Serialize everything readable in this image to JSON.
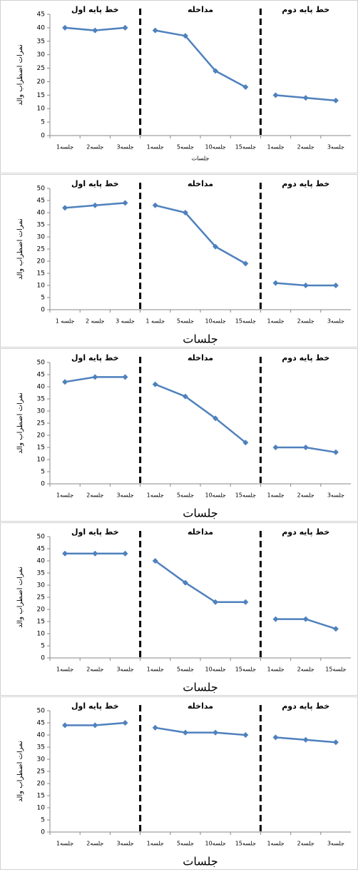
{
  "chart_data": [
    {
      "type": "line",
      "ylim": [
        0,
        45
      ],
      "yticks": [
        0,
        5,
        10,
        15,
        20,
        25,
        30,
        35,
        40,
        45
      ],
      "y_label": "نمرات اضطراب والد",
      "x_label": "جلسات",
      "categories": [
        "جلسه1",
        "جلسه2",
        "جلسه3",
        "جلسه1",
        "جلسه5",
        "جلسه10",
        "جلسه15",
        "جلسه1",
        "جلسه2",
        "جلسه3"
      ],
      "annotations": [
        "خط پایه اول",
        "مداخله",
        "خط پایه دوم"
      ],
      "series": [
        {
          "color": "#4f81bd",
          "values": [
            40,
            39,
            40,
            null,
            null,
            null,
            null,
            null,
            null,
            null
          ]
        },
        {
          "color": "#4f81bd",
          "values": [
            null,
            null,
            null,
            39,
            37,
            24,
            18,
            null,
            null,
            null
          ]
        },
        {
          "color": "#4f81bd",
          "values": [
            null,
            null,
            null,
            null,
            null,
            null,
            null,
            15,
            14,
            13
          ]
        }
      ]
    },
    {
      "type": "line",
      "ylim": [
        0,
        50
      ],
      "yticks": [
        0,
        5,
        10,
        15,
        20,
        25,
        30,
        35,
        40,
        45,
        50
      ],
      "y_label": "نمرات اضطراب والد",
      "x_label": "جلسات",
      "categories": [
        "جلسه 1",
        "جلسه 2",
        "جلسه 3",
        "جلسه 1",
        "جلسه5",
        "جلسه10",
        "جلسه15",
        "جلسه1",
        "جلسه2",
        "جلسه3"
      ],
      "annotations": [
        "خط پایه اول",
        "مداخله",
        "خط پایه دوم"
      ],
      "series": [
        {
          "color": "#4f81bd",
          "values": [
            42,
            43,
            44,
            null,
            null,
            null,
            null,
            null,
            null,
            null
          ]
        },
        {
          "color": "#4f81bd",
          "values": [
            null,
            null,
            null,
            43,
            40,
            26,
            19,
            null,
            null,
            null
          ]
        },
        {
          "color": "#4f81bd",
          "values": [
            null,
            null,
            null,
            null,
            null,
            null,
            null,
            11,
            10,
            10
          ]
        }
      ]
    },
    {
      "type": "line",
      "ylim": [
        0,
        50
      ],
      "yticks": [
        0,
        5,
        10,
        15,
        20,
        25,
        30,
        35,
        40,
        45,
        50
      ],
      "y_label": "نمرات اضطراب والد",
      "x_label": "جلسات",
      "categories": [
        "جلسه1",
        "جلسه2",
        "جلسه3",
        "جلسه1",
        "جلسه5",
        "جلسه10",
        "جلسه15",
        "جلسه1",
        "جلسه2",
        "جلسه3"
      ],
      "annotations": [
        "خط پایه اول",
        "مداخله",
        "خط پایه دوم"
      ],
      "series": [
        {
          "color": "#4f81bd",
          "values": [
            42,
            44,
            44,
            null,
            null,
            null,
            null,
            null,
            null,
            null
          ]
        },
        {
          "color": "#4f81bd",
          "values": [
            null,
            null,
            null,
            41,
            36,
            27,
            17,
            null,
            null,
            null
          ]
        },
        {
          "color": "#4f81bd",
          "values": [
            null,
            null,
            null,
            null,
            null,
            null,
            null,
            15,
            15,
            13
          ]
        }
      ]
    },
    {
      "type": "line",
      "ylim": [
        0,
        50
      ],
      "yticks": [
        0,
        5,
        10,
        15,
        20,
        25,
        30,
        35,
        40,
        45,
        50
      ],
      "y_label": "نمرات اضطراب والد",
      "x_label": "جلسات",
      "categories": [
        "جلسه1",
        "جلسه2",
        "جلسه3",
        "جلسه1",
        "جلسه5",
        "جلسه10",
        "جلسه15",
        "جلسه1",
        "جلسه2",
        "جلسه15"
      ],
      "annotations": [
        "خط پایه اول",
        "مداخله",
        "خط پایه دوم"
      ],
      "series": [
        {
          "color": "#4f81bd",
          "values": [
            43,
            43,
            43,
            null,
            null,
            null,
            null,
            null,
            null,
            null
          ]
        },
        {
          "color": "#4f81bd",
          "values": [
            null,
            null,
            null,
            40,
            31,
            23,
            23,
            null,
            null,
            null
          ]
        },
        {
          "color": "#4f81bd",
          "values": [
            null,
            null,
            null,
            null,
            null,
            null,
            null,
            16,
            16,
            12
          ]
        }
      ]
    },
    {
      "type": "line",
      "ylim": [
        0,
        50
      ],
      "yticks": [
        0,
        5,
        10,
        15,
        20,
        25,
        30,
        35,
        40,
        45,
        50
      ],
      "y_label": "نمرات اضطراب والد",
      "x_label": "جلسات",
      "categories": [
        "جلسه1",
        "جلسه2",
        "جلسه3",
        "جلسه1",
        "جلسه5",
        "جلسه10",
        "جلسه15",
        "جلسه1",
        "جلسه2",
        "جلسه3"
      ],
      "annotations": [
        "خط پایه اول",
        "مداخله",
        "خط پایه دوم"
      ],
      "series": [
        {
          "color": "#4f81bd",
          "values": [
            44,
            44,
            45,
            null,
            null,
            null,
            null,
            null,
            null,
            null
          ]
        },
        {
          "color": "#4f81bd",
          "values": [
            null,
            null,
            null,
            43,
            41,
            41,
            40,
            null,
            null,
            null
          ]
        },
        {
          "color": "#4f81bd",
          "values": [
            null,
            null,
            null,
            null,
            null,
            null,
            null,
            39,
            38,
            37
          ]
        }
      ]
    }
  ]
}
